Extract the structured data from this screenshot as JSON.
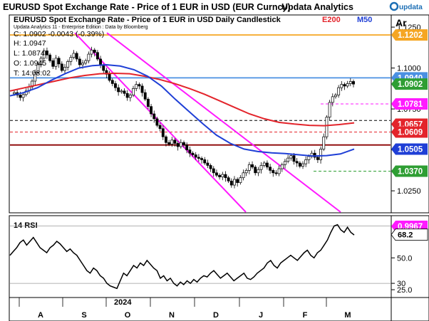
{
  "header": {
    "title": "EURUSD Spot Exchange Rate - Price of 1 EUR in USD (EUR Curncy)",
    "app_name": "Updata Analytics",
    "logo_text": "updata",
    "price_label": "Ar"
  },
  "chart_data": [
    {
      "type": "candlestick",
      "title": "EURUSD Spot Exchange Rate - Price of 1 EUR in USD Daily Candlestick",
      "source_note": "Updata Analytics 11 - Enterprise Edition : Data by Bloomberg",
      "ohlc_readout": {
        "C": "C: 1.0902  -0.0043 (-0.39%)",
        "H": "H: 1.0947",
        "L": "L: 1.0874",
        "O": "O: 1.0945",
        "T": "T: 14:08:02"
      },
      "legend": [
        {
          "name": "E200",
          "color": "#e3242b"
        },
        {
          "name": "M50",
          "color": "#1f3fd6"
        }
      ],
      "x_months": [
        "A",
        "S",
        "O",
        "N",
        "D",
        "J",
        "F",
        "M"
      ],
      "year_label": "2024",
      "y_ticks": [
        "1.1250",
        "1.1000",
        "1.0750",
        "1.0500",
        "1.0250"
      ],
      "ylim": [
        1.012,
        1.132
      ],
      "close_series": [
        1.085,
        1.0835,
        1.082,
        1.0838,
        1.086,
        1.0885,
        1.092,
        1.0975,
        1.102,
        1.106,
        1.1105,
        1.108,
        1.1045,
        1.101,
        1.106,
        1.1025,
        1.0985,
        1.1005,
        1.104,
        1.1065,
        1.109,
        1.1055,
        1.102,
        1.103,
        1.1045,
        1.1085,
        1.111,
        1.1095,
        1.1055,
        1.1015,
        1.0985,
        1.0962,
        1.0925,
        1.0905,
        1.088,
        1.0855,
        1.086,
        1.0845,
        1.082,
        1.0835,
        1.0875,
        1.09,
        1.089,
        1.085,
        1.081,
        1.0765,
        1.072,
        1.069,
        1.065,
        1.063,
        1.058,
        1.0545,
        1.0535,
        1.056,
        1.054,
        1.052,
        1.0545,
        1.053,
        1.05,
        1.048,
        1.047,
        1.0455,
        1.0448,
        1.044,
        1.042,
        1.0405,
        1.0385,
        1.036,
        1.0345,
        1.0335,
        1.035,
        1.033,
        1.031,
        1.0285,
        1.032,
        1.03,
        1.033,
        1.036,
        1.0375,
        1.041,
        1.0395,
        1.036,
        1.038,
        1.0405,
        1.042,
        1.0395,
        1.0375,
        1.036,
        1.0355,
        1.0385,
        1.041,
        1.043,
        1.045,
        1.0465,
        1.043,
        1.042,
        1.04,
        1.0415,
        1.044,
        1.046,
        1.048,
        1.0455,
        1.044,
        1.0505,
        1.058,
        1.07,
        1.079,
        1.0825,
        1.0835,
        1.088,
        1.09,
        1.089,
        1.0905,
        1.0918,
        1.0902
      ],
      "ema200": [
        1.086,
        1.088,
        1.09,
        1.092,
        1.094,
        1.0955,
        1.0965,
        1.0968,
        1.0965,
        1.095,
        1.093,
        1.0905,
        1.0875,
        1.084,
        1.08,
        1.076,
        1.072,
        1.069,
        1.0668,
        1.0658,
        1.065,
        1.0648,
        1.0655,
        1.0665
      ],
      "ma50": [
        1.083,
        1.085,
        1.088,
        1.0925,
        1.0965,
        1.1,
        1.1015,
        1.102,
        1.1012,
        1.099,
        1.095,
        1.089,
        1.081,
        1.0735,
        1.066,
        1.059,
        1.054,
        1.0505,
        1.049,
        1.0482,
        1.0478,
        1.047,
        1.0462,
        1.0465,
        1.0475,
        1.0505
      ],
      "channel_lines": [
        {
          "from": [
            1.1205,
            "Aug"
          ],
          "to": [
            1.0125,
            "Feb"
          ],
          "color": "#ff1aff"
        },
        {
          "from": [
            1.1195,
            "Sep"
          ],
          "to": [
            1.016,
            "Jan"
          ],
          "color": "#ff1aff"
        }
      ],
      "levels": [
        {
          "value": 1.1202,
          "label": "1.1202",
          "color": "#f5a623",
          "style": "solid"
        },
        {
          "value": 1.094,
          "label": "1.0940",
          "color": "#4a90e2",
          "style": "solid"
        },
        {
          "value": 1.0902,
          "label": "1.0902",
          "color": "#2e9e33",
          "style": "tag"
        },
        {
          "value": 1.0781,
          "label": "1.0781",
          "color": "#ff1aff",
          "style": "dashed"
        },
        {
          "value": 1.068,
          "label": "",
          "color": "#000000",
          "style": "dashed"
        },
        {
          "value": 1.0657,
          "label": "1.0657",
          "color": "#e3242b",
          "style": "tag"
        },
        {
          "value": 1.0609,
          "label": "1.0609",
          "color": "#e3242b",
          "style": "dashed"
        },
        {
          "value": 1.053,
          "label": "",
          "color": "#8b0000",
          "style": "solid"
        },
        {
          "value": 1.0505,
          "label": "1.0505",
          "color": "#1f3fd6",
          "style": "tag"
        },
        {
          "value": 1.037,
          "label": "1.0370",
          "color": "#2e9e33",
          "style": "dashed"
        }
      ]
    },
    {
      "type": "line",
      "title": "14 RSI",
      "y_ticks": [
        "75.0",
        "50.0",
        "30",
        "25.0"
      ],
      "ylim": [
        20,
        82
      ],
      "current_value": "68.2",
      "marker_value": "0.9967",
      "values": [
        52,
        55,
        58,
        62,
        64,
        60,
        63,
        66,
        62,
        58,
        56,
        54,
        58,
        60,
        63,
        61,
        58,
        55,
        57,
        54,
        52,
        48,
        44,
        40,
        38,
        42,
        40,
        36,
        34,
        30,
        28,
        27,
        26,
        32,
        38,
        36,
        40,
        44,
        42,
        46,
        44,
        48,
        45,
        42,
        40,
        34,
        36,
        32,
        34,
        30,
        28,
        31,
        29,
        32,
        30,
        33,
        31,
        34,
        36,
        35,
        38,
        40,
        37,
        34,
        36,
        38,
        35,
        32,
        34,
        36,
        38,
        34,
        33,
        35,
        38,
        40,
        42,
        46,
        48,
        44,
        42,
        46,
        48,
        50,
        52,
        50,
        48,
        51,
        54,
        56,
        52,
        50,
        54,
        56,
        60,
        64,
        70,
        75,
        76,
        72,
        70,
        74,
        70,
        68
      ]
    }
  ]
}
